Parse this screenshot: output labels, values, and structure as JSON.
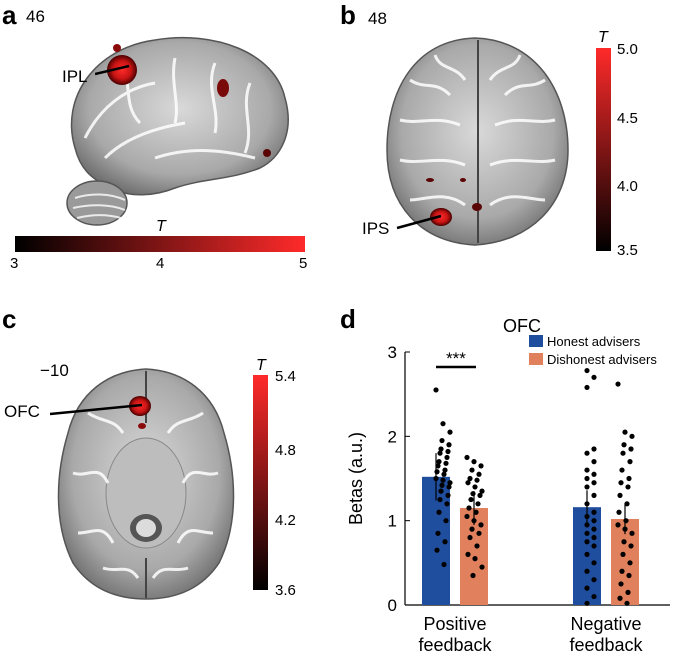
{
  "panels": {
    "a": {
      "letter": "a",
      "slice": "46",
      "region": "IPL",
      "colorbar": {
        "title": "T",
        "ticks": [
          "3",
          "4",
          "5"
        ]
      }
    },
    "b": {
      "letter": "b",
      "slice": "48",
      "region": "IPS",
      "colorbar": {
        "title": "T",
        "ticks": [
          "5.0",
          "4.5",
          "4.0",
          "3.5"
        ]
      }
    },
    "c": {
      "letter": "c",
      "slice": "−10",
      "region": "OFC",
      "colorbar": {
        "title": "T",
        "ticks": [
          "5.4",
          "4.8",
          "4.2",
          "3.6"
        ]
      }
    },
    "d": {
      "letter": "d"
    }
  },
  "colors": {
    "honest": "#1f4e9e",
    "dishonest": "#e0805c",
    "heat_low": "#000000",
    "heat_high": "#ff2a2a"
  },
  "chart_data": {
    "type": "bar",
    "title": "OFC",
    "categories": [
      "Positive feedback",
      "Negative feedback"
    ],
    "category_lines": [
      [
        "Positive",
        "feedback"
      ],
      [
        "Negative",
        "feedback"
      ]
    ],
    "ylabel": "Betas (a.u.)",
    "ylim": [
      0,
      3
    ],
    "yticks": [
      "0",
      "1",
      "2",
      "3"
    ],
    "series": [
      {
        "name": "Honest advisers",
        "color": "#1f4e9e",
        "values": [
          1.52,
          1.16
        ],
        "err": [
          0.28,
          0.2
        ]
      },
      {
        "name": "Dishonest advisers",
        "color": "#e0805c",
        "values": [
          1.15,
          1.02
        ],
        "err": [
          0.2,
          0.18
        ]
      }
    ],
    "significance": "***",
    "points": [
      [
        2.55,
        2.15,
        2.05,
        1.95,
        1.9,
        1.85,
        1.82,
        1.8,
        1.75,
        1.7,
        1.68,
        1.65,
        1.6,
        1.58,
        1.55,
        1.5,
        1.48,
        1.45,
        1.42,
        1.4,
        1.35,
        1.3,
        1.25,
        1.2,
        1.1,
        1.0,
        0.85,
        0.75,
        0.65,
        0.48
      ],
      [
        1.75,
        1.7,
        1.65,
        1.6,
        1.55,
        1.5,
        1.48,
        1.45,
        1.4,
        1.35,
        1.32,
        1.3,
        1.25,
        1.2,
        1.15,
        1.1,
        1.05,
        1.0,
        0.95,
        0.9,
        0.85,
        0.8,
        0.7,
        0.6,
        0.55,
        0.45,
        0.35
      ],
      [
        2.78,
        2.7,
        2.58,
        1.85,
        1.8,
        1.7,
        1.6,
        1.55,
        1.5,
        1.45,
        1.4,
        1.3,
        1.2,
        1.1,
        1.05,
        1.0,
        0.95,
        0.9,
        0.85,
        0.8,
        0.75,
        0.7,
        0.6,
        0.5,
        0.4,
        0.3,
        0.2,
        0.1,
        0.02
      ],
      [
        2.62,
        2.05,
        2.0,
        1.9,
        1.85,
        1.8,
        1.7,
        1.6,
        1.5,
        1.45,
        1.4,
        1.3,
        1.2,
        1.1,
        1.0,
        0.95,
        0.9,
        0.85,
        0.75,
        0.7,
        0.6,
        0.5,
        0.4,
        0.35,
        0.25,
        0.15,
        0.08,
        0.02
      ]
    ]
  }
}
